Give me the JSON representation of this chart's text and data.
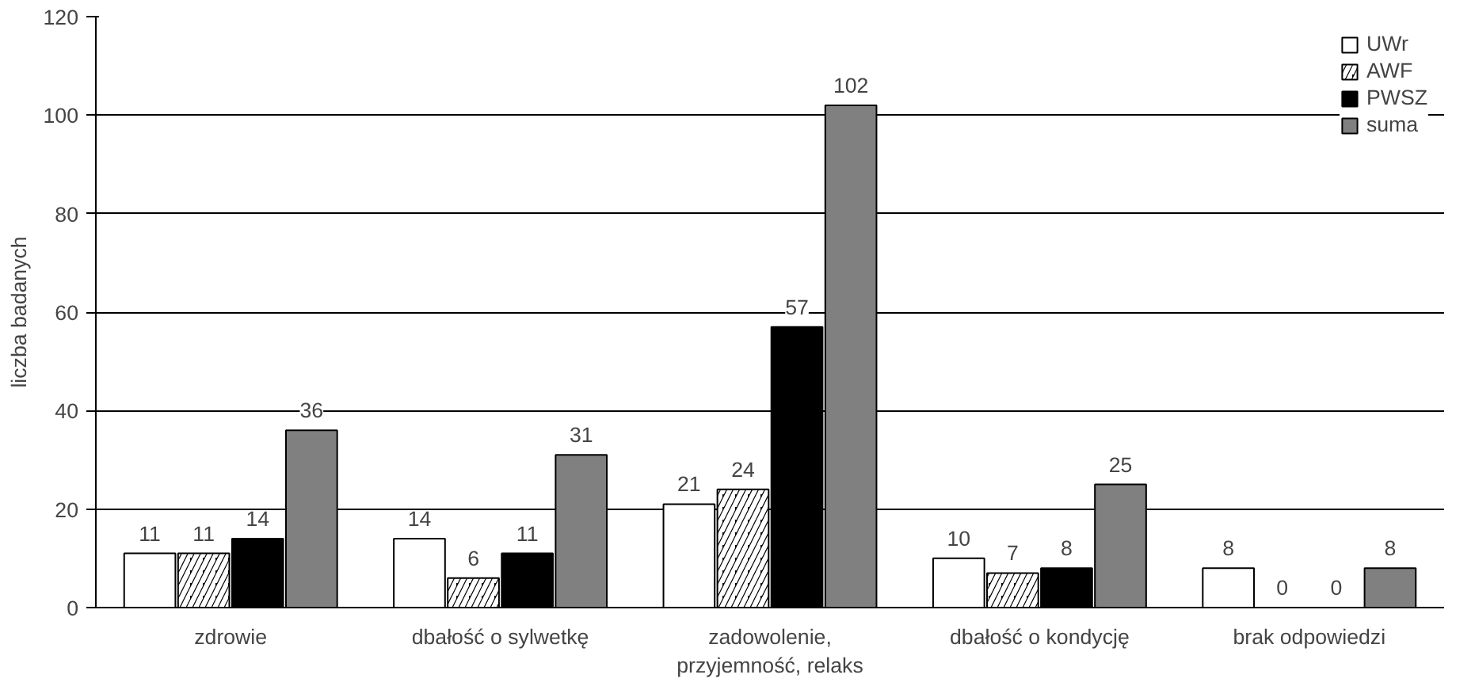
{
  "chart_data": {
    "type": "bar",
    "ylabel": "liczba badanych",
    "categories": [
      "zdrowie",
      "dbałość o sylwetkę",
      "zadowolenie,\nprzyjemność, relaks",
      "dbałość o kondycję",
      "brak odpowiedzi"
    ],
    "series": [
      {
        "name": "UWr",
        "color": "#ffffff",
        "values": [
          11,
          14,
          21,
          10,
          8
        ]
      },
      {
        "name": "AWF",
        "color": "#000000",
        "values": [
          11,
          6,
          24,
          7,
          0
        ]
      },
      {
        "name": "PWSZ",
        "color": "#000000",
        "values": [
          14,
          11,
          57,
          8,
          0
        ]
      },
      {
        "name": "suma",
        "color": "#808080",
        "values": [
          36,
          31,
          102,
          25,
          8
        ]
      }
    ],
    "ylim": [
      0,
      120
    ],
    "yticks": [
      0,
      20,
      40,
      60,
      80,
      100,
      120
    ],
    "grid": "y",
    "legend": "top right",
    "data_labels": true
  }
}
